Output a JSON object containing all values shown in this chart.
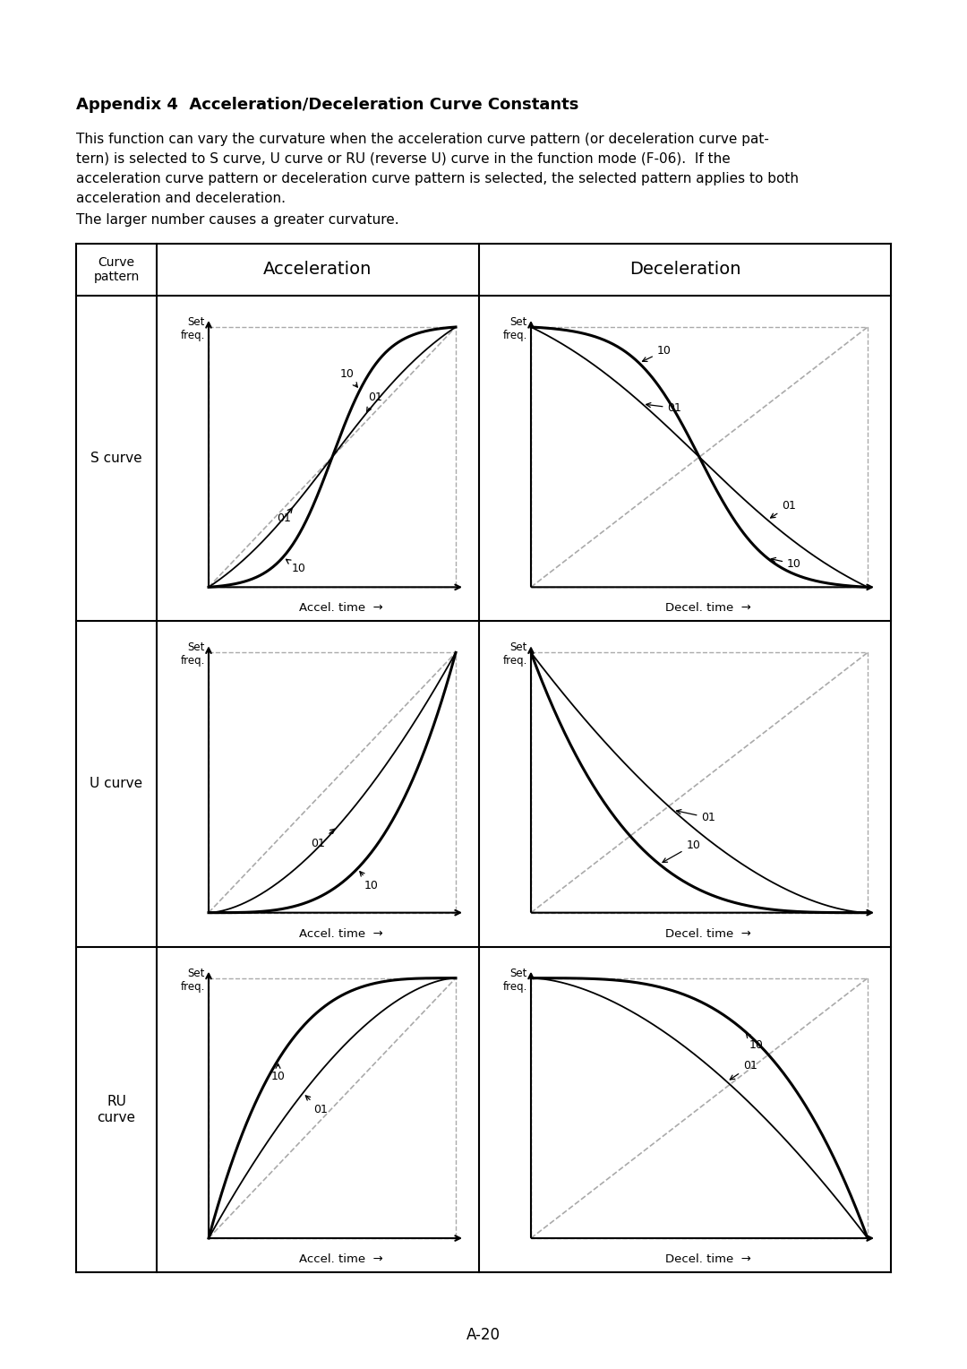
{
  "title": "Appendix 4  Acceleration/Deceleration Curve Constants",
  "intro_text": "This function can vary the curvature when the acceleration curve pattern (or deceleration curve pat-\ntern) is selected to S curve, U curve or RU (reverse U) curve in the function mode (F-06).  If the\nacceleration curve pattern or deceleration curve pattern is selected, the selected pattern applies to both\nacceleration and deceleration.",
  "note_text": "The larger number causes a greater curvature.",
  "col_headers": [
    "Curve\npattern",
    "Acceleration",
    "Deceleration"
  ],
  "row_labels": [
    "S curve",
    "U curve",
    "RU\ncurve"
  ],
  "accel_time_label": "Accel. time",
  "decel_time_label": "Decel. time",
  "set_freq_label": "Set\nfreq.",
  "background_color": "#ffffff",
  "text_color": "#000000",
  "curve_color": "#000000",
  "dashed_color": "#999999",
  "border_color": "#000000"
}
